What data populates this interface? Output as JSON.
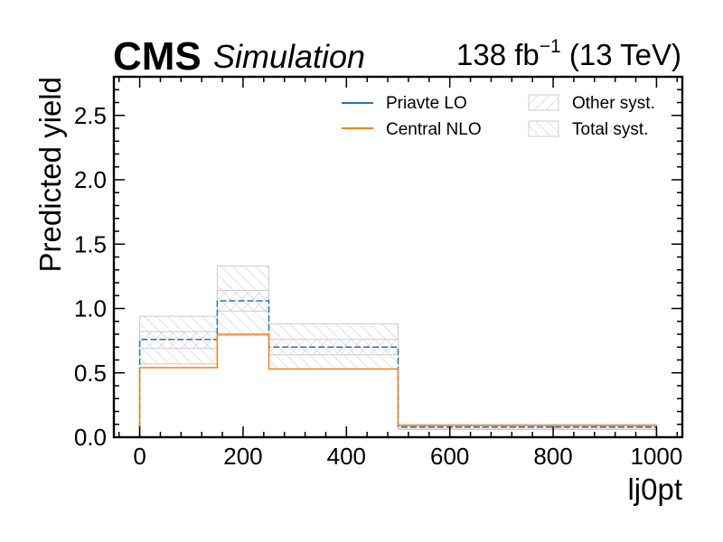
{
  "header": {
    "experiment": "CMS",
    "label": "Simulation",
    "lumi_value": "138 fb",
    "lumi_exponent": "−1",
    "lumi_energy": " (13 TeV)"
  },
  "chart_data": {
    "type": "histogram",
    "xlabel": "lj0pt",
    "ylabel": "Predicted yield",
    "xlim": [
      -50,
      1050
    ],
    "ylim": [
      0,
      2.8
    ],
    "xticks": [
      0,
      200,
      400,
      600,
      800,
      1000
    ],
    "xtick_labels": [
      "0",
      "200",
      "400",
      "600",
      "800",
      "1000"
    ],
    "yticks": [
      0.0,
      0.5,
      1.0,
      1.5,
      2.0,
      2.5
    ],
    "ytick_labels": [
      "0.0",
      "0.5",
      "1.0",
      "1.5",
      "2.0",
      "2.5"
    ],
    "bin_edges": [
      0,
      150,
      250,
      500,
      1000
    ],
    "series": [
      {
        "name": "Priavte LO",
        "color": "#1f77b4",
        "values": [
          0.76,
          1.06,
          0.7,
          0.08
        ]
      },
      {
        "name": "Central NLO",
        "color": "#ff7f0e",
        "values": [
          0.54,
          0.8,
          0.53,
          0.09
        ]
      }
    ],
    "bands": [
      {
        "name": "Other syst.",
        "hatch": "forward",
        "color": "#cccccc",
        "low": [
          0.69,
          0.98,
          0.64,
          0.07
        ],
        "high": [
          0.82,
          1.14,
          0.76,
          0.09
        ]
      },
      {
        "name": "Total syst.",
        "hatch": "backward",
        "color": "#cccccc",
        "low": [
          0.57,
          0.79,
          0.53,
          0.06
        ],
        "high": [
          0.94,
          1.33,
          0.88,
          0.1
        ]
      }
    ],
    "legend": {
      "position": "top-right",
      "columns": 2
    },
    "grid": false
  }
}
